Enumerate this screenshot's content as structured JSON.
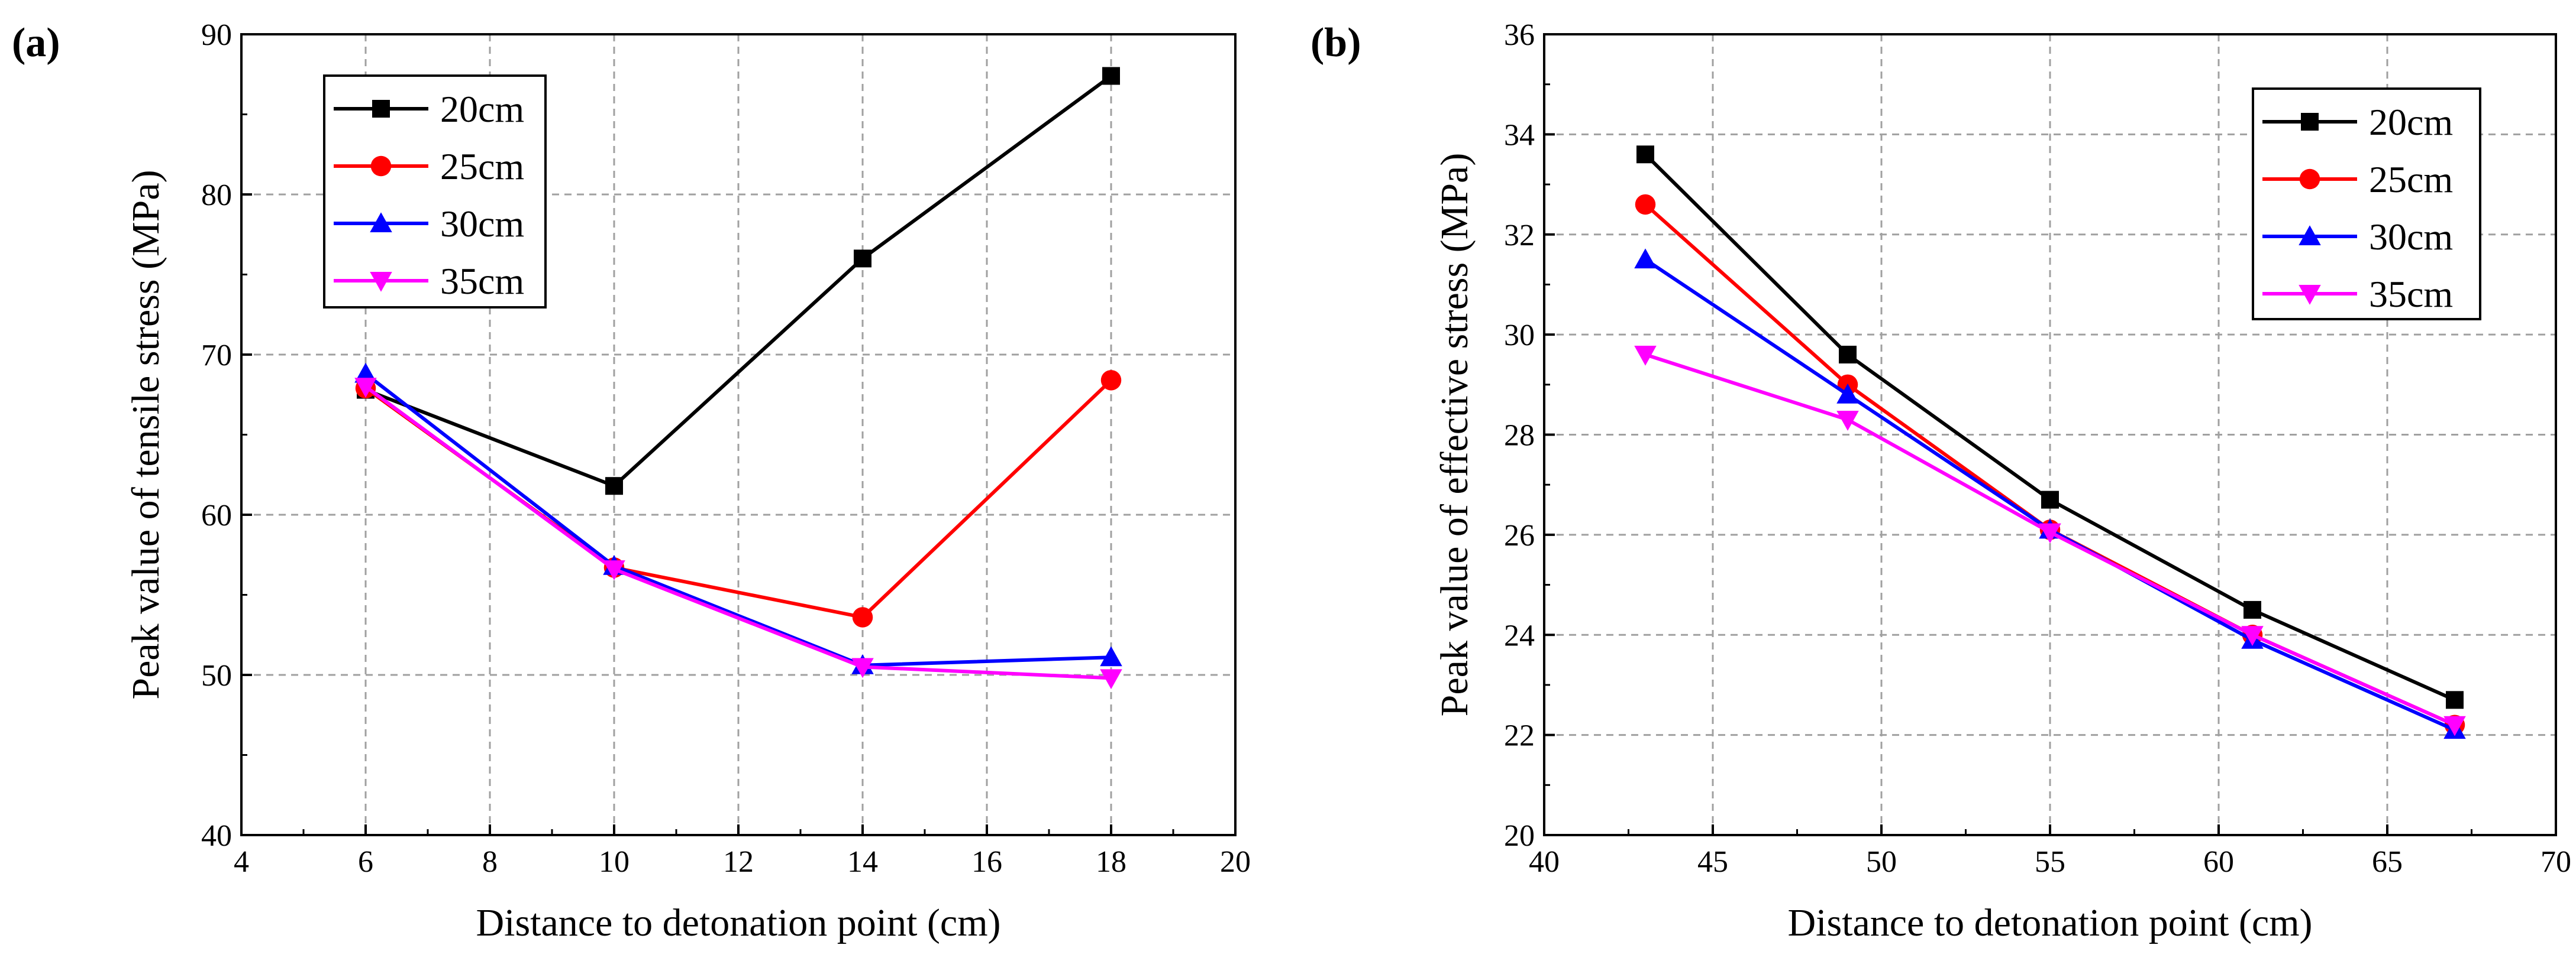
{
  "chart_data": [
    {
      "type": "line",
      "panel_label": "(a)",
      "xlabel": "Distance to detonation point (cm)",
      "ylabel": "Peak value of tensile stress (MPa)",
      "xlim": [
        4,
        20
      ],
      "ylim": [
        40,
        90
      ],
      "xticks": [
        "4",
        "6",
        "8",
        "10",
        "12",
        "14",
        "16",
        "18",
        "20"
      ],
      "yticks": [
        "40",
        "50",
        "60",
        "70",
        "80",
        "90"
      ],
      "grid": true,
      "legend_position": "top-left",
      "x": [
        6,
        10,
        14,
        18
      ],
      "series": [
        {
          "name": "20cm",
          "color": "#000000",
          "marker": "square",
          "values": [
            67.8,
            61.8,
            76.0,
            87.4
          ]
        },
        {
          "name": "25cm",
          "color": "#ff0000",
          "marker": "circle",
          "values": [
            67.9,
            56.7,
            53.6,
            68.4
          ]
        },
        {
          "name": "30cm",
          "color": "#0000ff",
          "marker": "triangle-up",
          "values": [
            68.8,
            56.8,
            50.6,
            51.1
          ]
        },
        {
          "name": "35cm",
          "color": "#ff00ff",
          "marker": "triangle-down",
          "values": [
            68.0,
            56.6,
            50.5,
            49.8
          ]
        }
      ]
    },
    {
      "type": "line",
      "panel_label": "(b)",
      "xlabel": "Distance to detonation point (cm)",
      "ylabel": "Peak value of effective stress (MPa)",
      "xlim": [
        40,
        70
      ],
      "ylim": [
        20,
        36
      ],
      "xticks": [
        "40",
        "45",
        "50",
        "55",
        "60",
        "65",
        "70"
      ],
      "yticks": [
        "20",
        "22",
        "24",
        "26",
        "28",
        "30",
        "32",
        "34",
        "36"
      ],
      "grid": true,
      "legend_position": "top-right",
      "x": [
        43,
        49,
        55,
        61,
        67
      ],
      "series": [
        {
          "name": "20cm",
          "color": "#000000",
          "marker": "square",
          "values": [
            33.6,
            29.6,
            26.7,
            24.5,
            22.7
          ]
        },
        {
          "name": "25cm",
          "color": "#ff0000",
          "marker": "circle",
          "values": [
            32.6,
            29.0,
            26.1,
            24.0,
            22.2
          ]
        },
        {
          "name": "30cm",
          "color": "#0000ff",
          "marker": "triangle-up",
          "values": [
            31.5,
            28.8,
            26.1,
            23.9,
            22.1
          ]
        },
        {
          "name": "35cm",
          "color": "#ff00ff",
          "marker": "triangle-down",
          "values": [
            29.6,
            28.3,
            26.05,
            24.0,
            22.2
          ]
        }
      ]
    }
  ]
}
